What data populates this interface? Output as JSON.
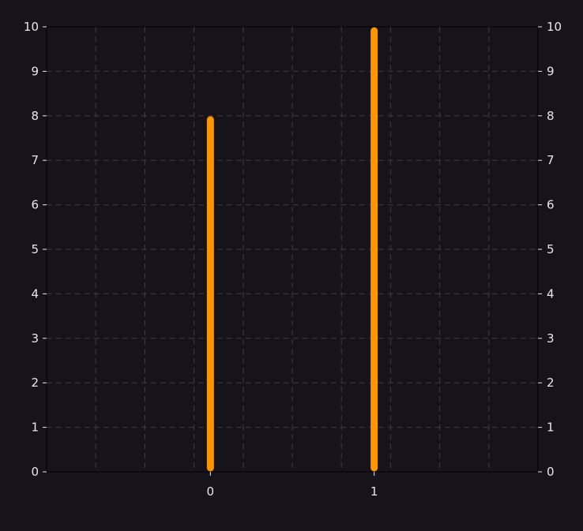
{
  "chart_data": {
    "type": "bar",
    "categories": [
      "0",
      "1"
    ],
    "values": [
      8,
      10
    ],
    "xlim": [
      -1,
      2
    ],
    "ylim": [
      0,
      10
    ],
    "yticks": [
      "0",
      "1",
      "2",
      "3",
      "4",
      "5",
      "6",
      "7",
      "8",
      "9",
      "10"
    ],
    "xticks": [
      "0",
      "1"
    ],
    "y_axis_on_both_sides": true,
    "grid": true,
    "grid_style": "dashed",
    "bar_style": "thin rounded stem",
    "colors": {
      "background": "#16141a",
      "plot_background": "#16141a",
      "bar": "#ff9500",
      "grid": "#3a3d40",
      "axis": "#000000",
      "text": "#e8e8e8"
    }
  }
}
